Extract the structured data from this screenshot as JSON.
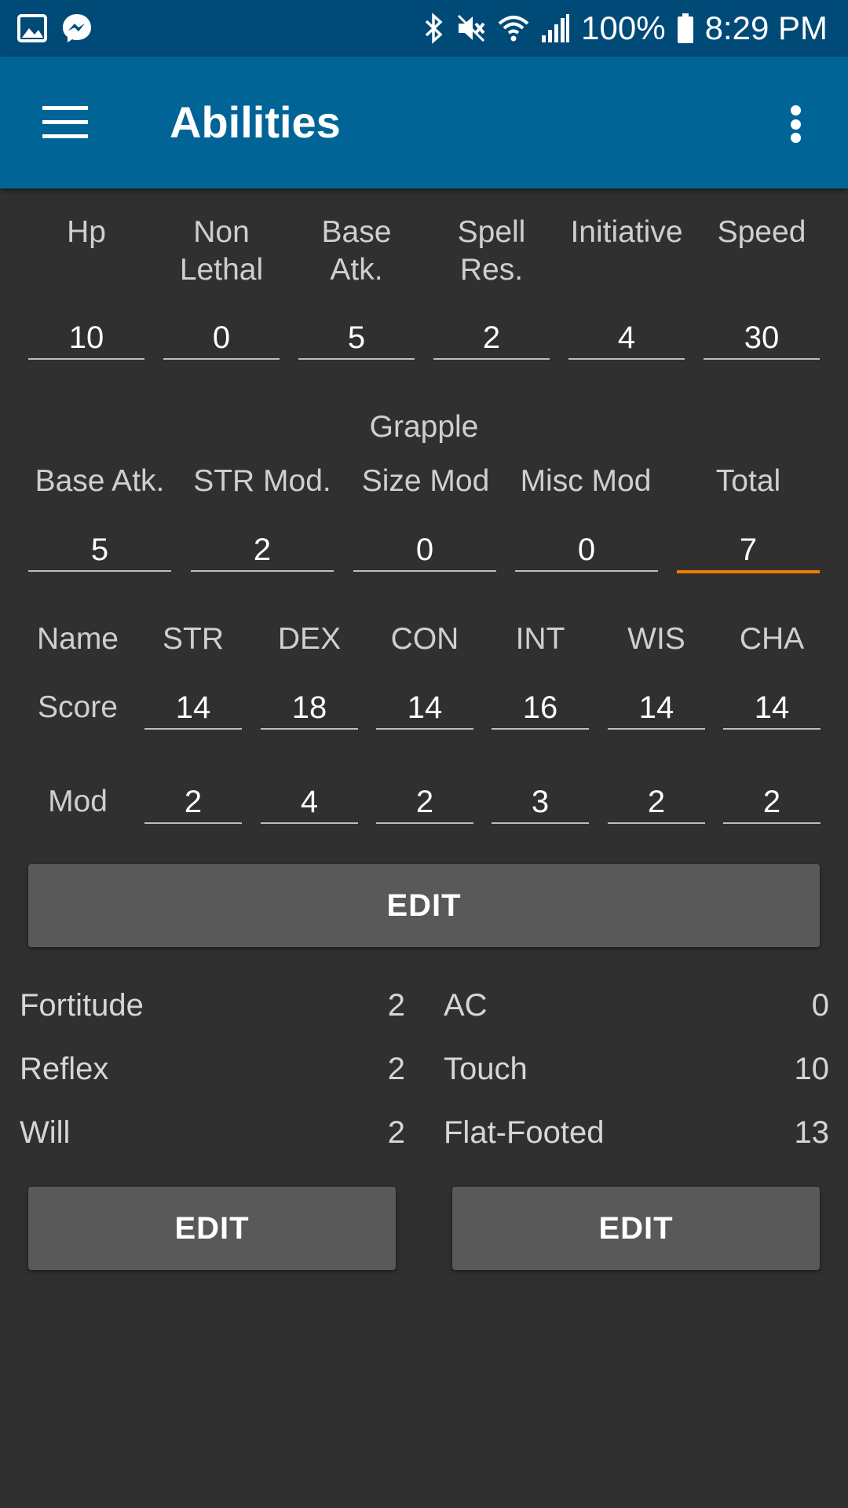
{
  "status_bar": {
    "battery": "100%",
    "time": "8:29 PM",
    "icons": [
      "gallery-icon",
      "messenger-icon",
      "bluetooth-icon",
      "mute-icon",
      "wifi-icon",
      "signal-icon",
      "battery-icon"
    ]
  },
  "app_bar": {
    "title": "Abilities",
    "menu_icon": "hamburger-icon",
    "overflow_icon": "more-vert-icon"
  },
  "stats": {
    "labels": [
      "Hp",
      "Non\nLethal",
      "Base\nAtk.",
      "Spell\nRes.",
      "Initiative",
      "Speed"
    ],
    "values": [
      "10",
      "0",
      "5",
      "2",
      "4",
      "30"
    ]
  },
  "grapple": {
    "title": "Grapple",
    "labels": [
      "Base Atk.",
      "STR Mod.",
      "Size Mod",
      "Misc Mod",
      "Total"
    ],
    "values": [
      "5",
      "2",
      "0",
      "0",
      "7"
    ]
  },
  "abilities": {
    "header": [
      "Name",
      "STR",
      "DEX",
      "CON",
      "INT",
      "WIS",
      "CHA"
    ],
    "score_label": "Score",
    "scores": [
      "14",
      "18",
      "14",
      "16",
      "14",
      "14"
    ],
    "mod_label": "Mod",
    "mods": [
      "2",
      "4",
      "2",
      "3",
      "2",
      "2"
    ],
    "edit_label": "EDIT"
  },
  "saves": [
    {
      "label": "Fortitude",
      "value": "2"
    },
    {
      "label": "Reflex",
      "value": "2"
    },
    {
      "label": "Will",
      "value": "2"
    }
  ],
  "armor": [
    {
      "label": "AC",
      "value": "0"
    },
    {
      "label": "Touch",
      "value": "10"
    },
    {
      "label": "Flat-Footed",
      "value": "13"
    }
  ],
  "buttons": {
    "saves_edit": "EDIT",
    "armor_edit": "EDIT"
  },
  "colors": {
    "status_bar": "#004a78",
    "app_bar": "#006497",
    "background": "#303030",
    "accent": "#ef7d00",
    "button": "#595959"
  }
}
